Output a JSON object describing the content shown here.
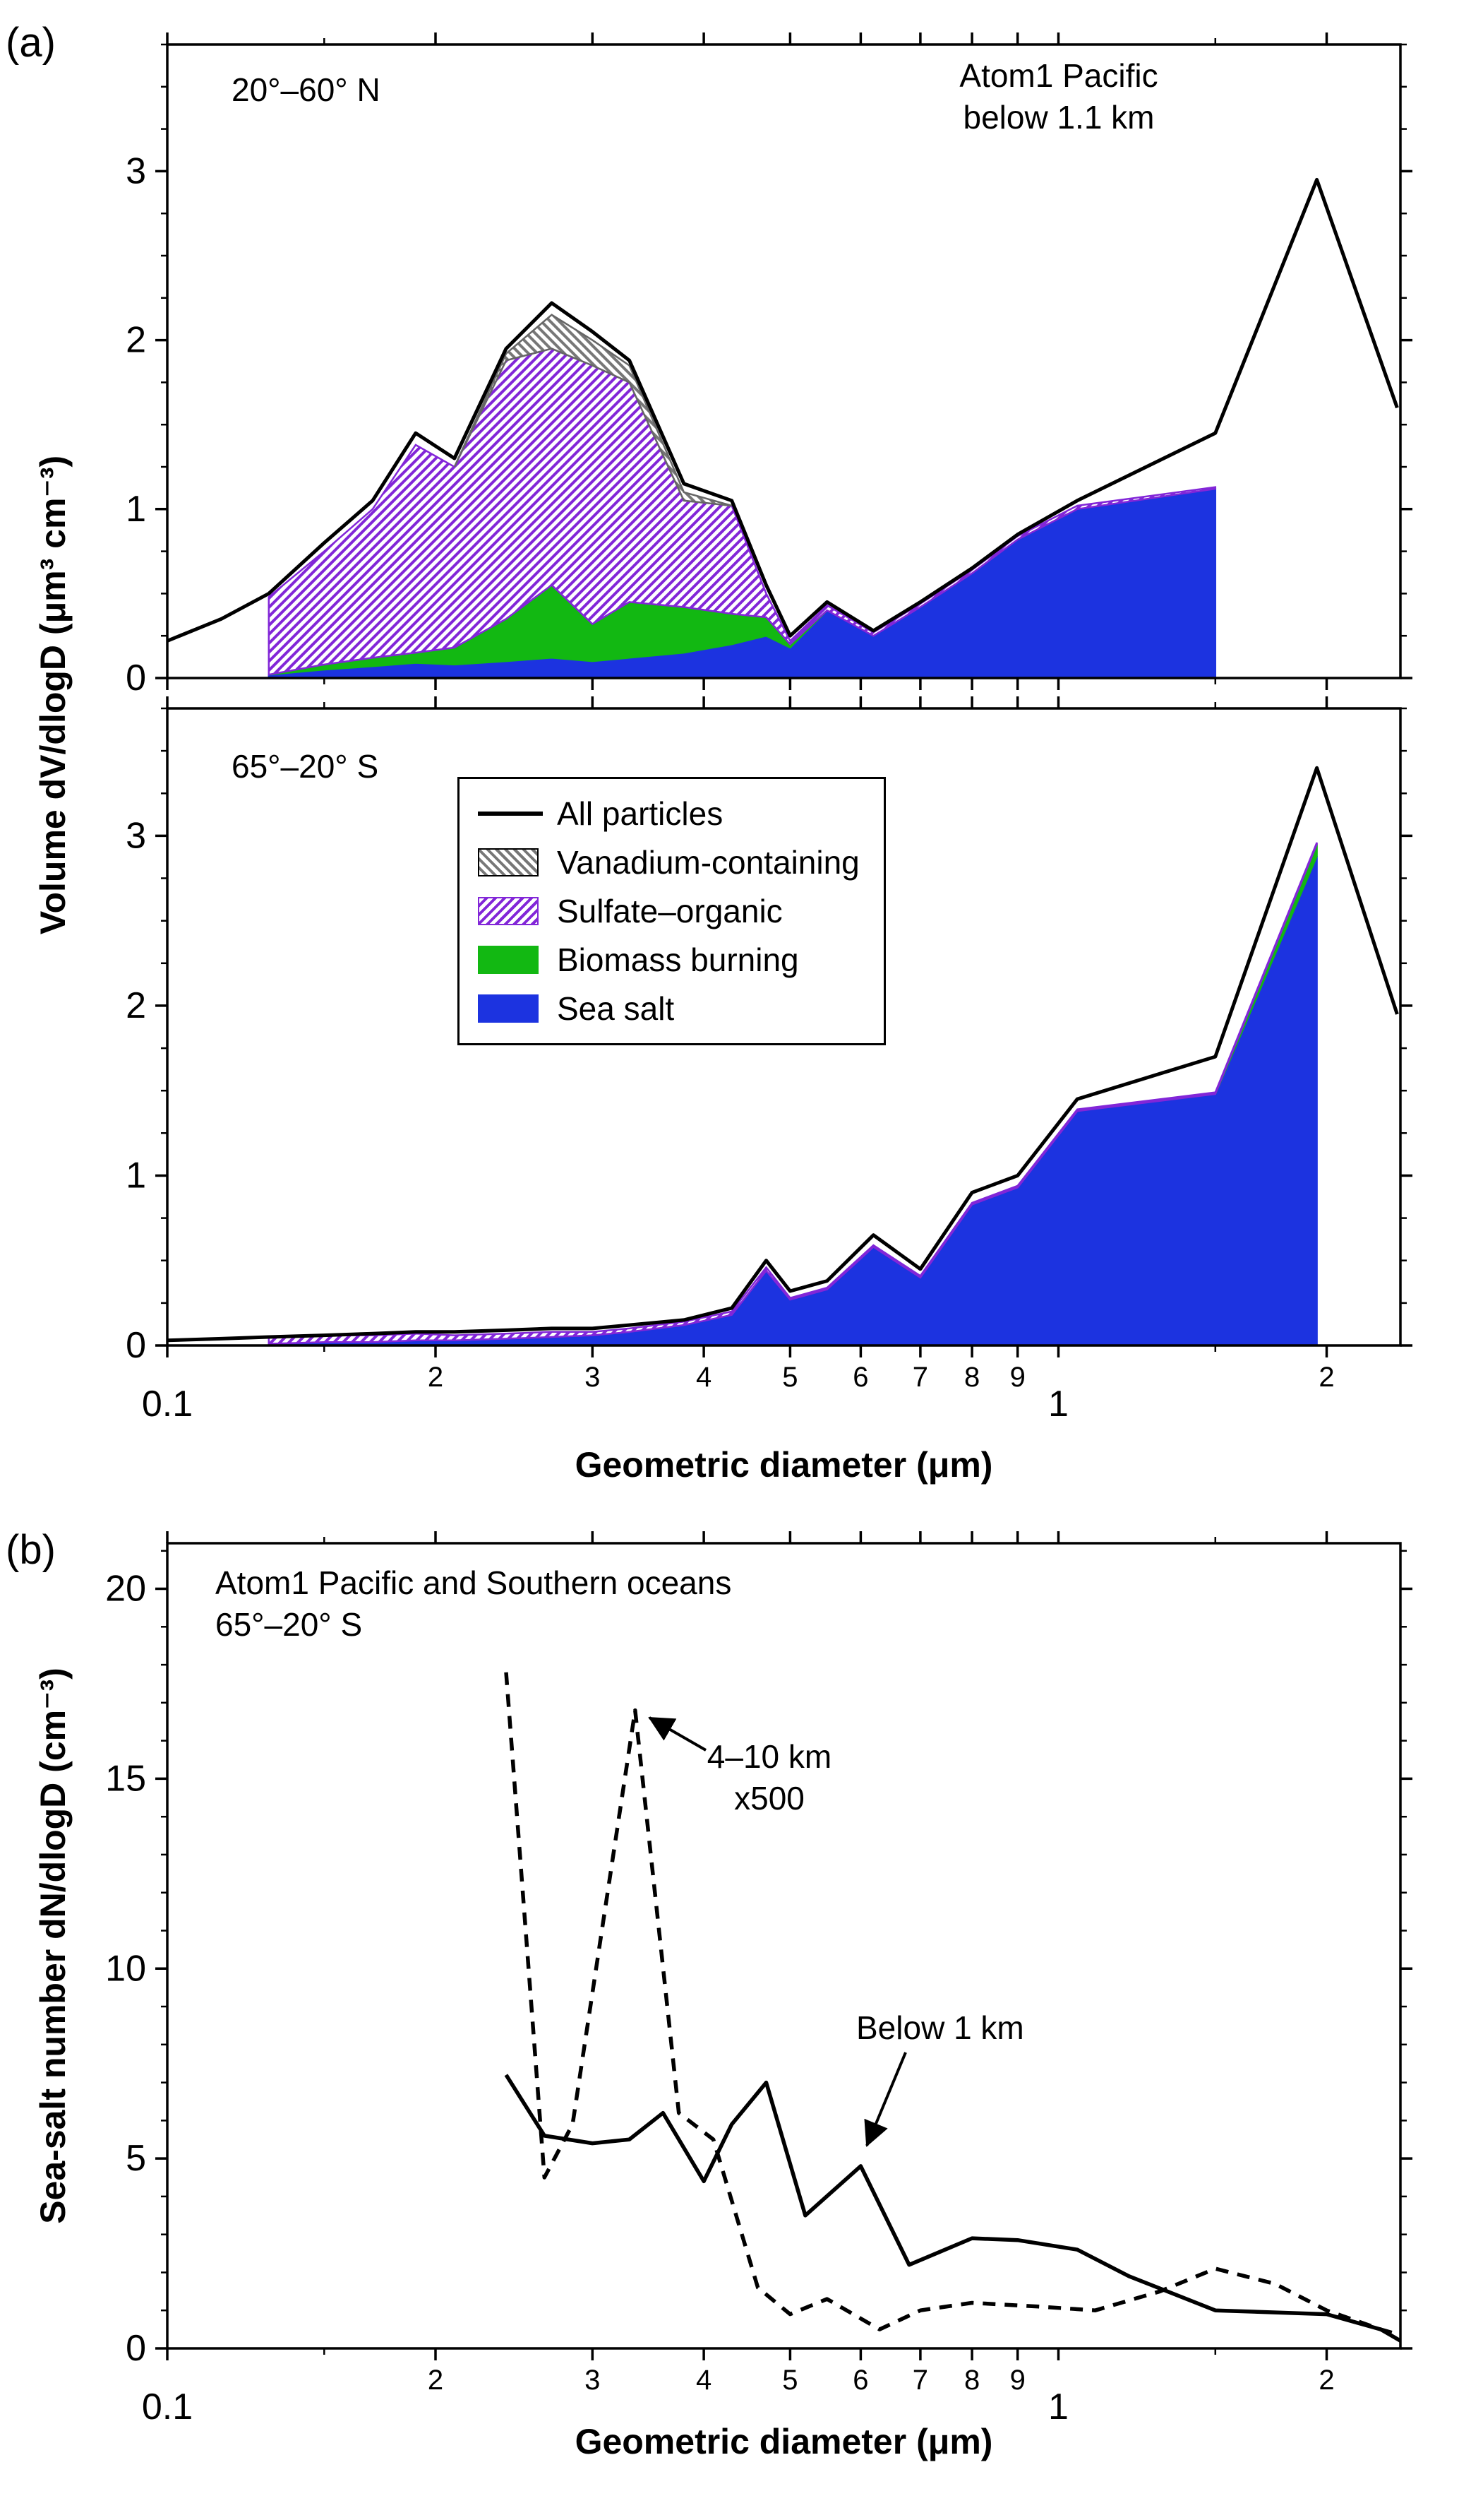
{
  "panels": {
    "a": {
      "letter": "(a)"
    },
    "b": {
      "letter": "(b)"
    }
  },
  "colors": {
    "all_particles": "#000000",
    "vanadium": "#777777",
    "sulfate_organic": "#8226d8",
    "biomass_burning": "#12b812",
    "sea_salt": "#1c33e0"
  },
  "chart_data": [
    {
      "id": "a-top",
      "type": "area",
      "region_label": "20°–60° N",
      "annotation_lines": [
        "Atom1 Pacific",
        "below 1.1 km"
      ],
      "ylabel": "Volume dV/dlogD (μm³ cm⁻³)",
      "xscale": "log",
      "xlim": [
        0.1,
        2.42
      ],
      "ylim": [
        0,
        3.75
      ],
      "y_ticks": [
        0,
        1,
        2,
        3
      ],
      "y_minor": 0.25,
      "x_ticks": [
        {
          "v": 0.1,
          "label": "0.1",
          "decade": true
        },
        {
          "v": 0.15
        },
        {
          "v": 0.2,
          "label": "2"
        },
        {
          "v": 0.3,
          "label": "3"
        },
        {
          "v": 0.4,
          "label": "4"
        },
        {
          "v": 0.5,
          "label": "5"
        },
        {
          "v": 0.6,
          "label": "6"
        },
        {
          "v": 0.7,
          "label": "7"
        },
        {
          "v": 0.8,
          "label": "8"
        },
        {
          "v": 0.9,
          "label": "9"
        },
        {
          "v": 1,
          "label": "1",
          "decade": true
        },
        {
          "v": 1.5
        },
        {
          "v": 2,
          "label": "2"
        }
      ],
      "x": [
        0.1,
        0.115,
        0.13,
        0.15,
        0.17,
        0.19,
        0.21,
        0.24,
        0.27,
        0.3,
        0.33,
        0.38,
        0.43,
        0.47,
        0.5,
        0.55,
        0.62,
        0.7,
        0.8,
        0.9,
        1.05,
        1.5,
        1.95,
        2.4
      ],
      "series": [
        {
          "name": "Sea salt",
          "color": "#1c33e0",
          "values": [
            null,
            null,
            0.02,
            0.05,
            0.07,
            0.09,
            0.08,
            0.1,
            0.12,
            0.1,
            0.12,
            0.15,
            0.2,
            0.25,
            0.18,
            0.4,
            0.25,
            0.42,
            0.62,
            0.82,
            1.0,
            1.12,
            null,
            null
          ]
        },
        {
          "name": "Biomass burning",
          "color": "#12b812",
          "values": [
            null,
            null,
            0,
            0.03,
            0.05,
            0.06,
            0.1,
            0.25,
            0.43,
            0.22,
            0.33,
            0.27,
            0.18,
            0.11,
            0.02,
            0,
            null,
            null,
            null,
            null,
            null,
            null,
            null,
            null
          ]
        },
        {
          "name": "Sulfate–organic",
          "color": "#8226d8",
          "pattern": "hatch-purple",
          "values": [
            null,
            null,
            0.46,
            0.67,
            0.88,
            1.23,
            1.07,
            1.53,
            1.4,
            1.53,
            1.3,
            0.63,
            0.64,
            0.14,
            0.02,
            0.03,
            0.02,
            0.02,
            0.02,
            0.02,
            0.02,
            0.01,
            null,
            null
          ]
        },
        {
          "name": "Vanadium-containing",
          "color": "#666666",
          "pattern": "hatch-gray",
          "values": [
            null,
            null,
            null,
            null,
            null,
            null,
            0,
            0.04,
            0.2,
            0.15,
            0.1,
            0.05,
            0,
            null,
            null,
            null,
            null,
            null,
            null,
            null,
            null,
            null,
            null,
            null
          ]
        },
        {
          "name": "All particles",
          "kind": "line",
          "color": "#000000",
          "width": 5,
          "values": [
            0.22,
            0.35,
            0.5,
            0.8,
            1.05,
            1.45,
            1.3,
            1.95,
            2.22,
            2.05,
            1.88,
            1.15,
            1.05,
            0.55,
            0.25,
            0.45,
            0.28,
            0.45,
            0.65,
            0.85,
            1.05,
            1.45,
            2.95,
            1.6
          ]
        }
      ]
    },
    {
      "id": "a-bottom",
      "type": "area",
      "region_label": "65°–20° S",
      "xlabel": "Geometric diameter (μm)",
      "ylabel": "Volume dV/dlogD (μm³ cm⁻³)",
      "legend": [
        "All particles",
        "Vanadium-containing",
        "Sulfate–organic",
        "Biomass burning",
        "Sea salt"
      ],
      "xscale": "log",
      "xlim": [
        0.1,
        2.42
      ],
      "ylim": [
        0,
        3.75
      ],
      "y_ticks": [
        0,
        1,
        2,
        3
      ],
      "y_minor": 0.25,
      "x_ticks": [
        {
          "v": 0.1,
          "label": "0.1",
          "decade": true
        },
        {
          "v": 0.15
        },
        {
          "v": 0.2,
          "label": "2"
        },
        {
          "v": 0.3,
          "label": "3"
        },
        {
          "v": 0.4,
          "label": "4"
        },
        {
          "v": 0.5,
          "label": "5"
        },
        {
          "v": 0.6,
          "label": "6"
        },
        {
          "v": 0.7,
          "label": "7"
        },
        {
          "v": 0.8,
          "label": "8"
        },
        {
          "v": 0.9,
          "label": "9"
        },
        {
          "v": 1,
          "label": "1",
          "decade": true
        },
        {
          "v": 1.5
        },
        {
          "v": 2,
          "label": "2"
        }
      ],
      "x": [
        0.1,
        0.115,
        0.13,
        0.15,
        0.17,
        0.19,
        0.21,
        0.24,
        0.27,
        0.3,
        0.33,
        0.38,
        0.43,
        0.47,
        0.5,
        0.55,
        0.62,
        0.7,
        0.8,
        0.9,
        1.05,
        1.5,
        1.95,
        2.4
      ],
      "series": [
        {
          "name": "Sea salt",
          "color": "#1c33e0",
          "values": [
            null,
            null,
            0.01,
            0.02,
            0.02,
            0.03,
            0.03,
            0.04,
            0.05,
            0.06,
            0.08,
            0.12,
            0.18,
            0.44,
            0.27,
            0.33,
            0.58,
            0.4,
            0.83,
            0.93,
            1.38,
            1.48,
            2.88,
            null
          ]
        },
        {
          "name": "Biomass burning",
          "color": "#12b812",
          "values": [
            null,
            null,
            null,
            null,
            null,
            null,
            null,
            null,
            null,
            null,
            null,
            null,
            null,
            null,
            null,
            null,
            null,
            null,
            null,
            null,
            null,
            0,
            0.07,
            null
          ]
        },
        {
          "name": "Sulfate–organic",
          "color": "#8226d8",
          "pattern": "hatch-purple",
          "values": [
            null,
            null,
            0.04,
            0.04,
            0.04,
            0.04,
            0.03,
            0.03,
            0.03,
            0.02,
            0.02,
            0.02,
            0.02,
            0.02,
            0.01,
            0.01,
            0.01,
            0.01,
            0.01,
            0.01,
            0.01,
            0.01,
            0.01,
            null
          ]
        },
        {
          "name": "All particles",
          "kind": "line",
          "color": "#000000",
          "width": 5,
          "values": [
            0.03,
            0.04,
            0.05,
            0.06,
            0.07,
            0.08,
            0.08,
            0.09,
            0.1,
            0.1,
            0.12,
            0.15,
            0.22,
            0.5,
            0.32,
            0.38,
            0.65,
            0.45,
            0.9,
            1.0,
            1.45,
            1.7,
            3.4,
            1.95
          ]
        }
      ]
    },
    {
      "id": "b",
      "type": "line",
      "title_lines": [
        "Atom1 Pacific and Southern oceans",
        "65°–20° S"
      ],
      "xlabel": "Geometric diameter (μm)",
      "ylabel": "Sea-salt number dN/dlogD (cm⁻³)",
      "annotations": [
        {
          "lines": [
            "4–10 km",
            "x500"
          ]
        },
        {
          "lines": [
            "Below 1 km"
          ]
        }
      ],
      "xscale": "log",
      "xlim": [
        0.1,
        2.42
      ],
      "ylim": [
        0,
        21.2
      ],
      "y_ticks": [
        0,
        5,
        10,
        15,
        20
      ],
      "y_minor": 1,
      "x_ticks": [
        {
          "v": 0.1,
          "label": "0.1",
          "decade": true
        },
        {
          "v": 0.15
        },
        {
          "v": 0.2,
          "label": "2"
        },
        {
          "v": 0.3,
          "label": "3"
        },
        {
          "v": 0.4,
          "label": "4"
        },
        {
          "v": 0.5,
          "label": "5"
        },
        {
          "v": 0.6,
          "label": "6"
        },
        {
          "v": 0.7,
          "label": "7"
        },
        {
          "v": 0.8,
          "label": "8"
        },
        {
          "v": 0.9,
          "label": "9"
        },
        {
          "v": 1,
          "label": "1",
          "decade": true
        },
        {
          "v": 1.5
        },
        {
          "v": 2,
          "label": "2"
        }
      ],
      "series": [
        {
          "name": "4–10 km x500",
          "kind": "line",
          "style": "dashed",
          "color": "#000000",
          "width": 5.5,
          "x": [
            0.24,
            0.265,
            0.285,
            0.335,
            0.375,
            0.41,
            0.46,
            0.5,
            0.55,
            0.63,
            0.7,
            0.8,
            0.95,
            1.1,
            1.3,
            1.5,
            1.75,
            2.0,
            2.3,
            2.42
          ],
          "values": [
            17.8,
            4.5,
            5.9,
            16.8,
            6.2,
            5.5,
            1.6,
            0.9,
            1.3,
            0.5,
            1.0,
            1.2,
            1.1,
            1.0,
            1.5,
            2.1,
            1.7,
            1.0,
            0.5,
            0.35
          ]
        },
        {
          "name": "Below 1 km",
          "kind": "line",
          "style": "solid",
          "color": "#000000",
          "width": 5.5,
          "x": [
            0.24,
            0.265,
            0.3,
            0.33,
            0.36,
            0.4,
            0.43,
            0.47,
            0.52,
            0.6,
            0.68,
            0.8,
            0.9,
            1.05,
            1.2,
            1.5,
            2.0,
            2.3,
            2.42
          ],
          "values": [
            7.2,
            5.6,
            5.4,
            5.5,
            6.2,
            4.4,
            5.9,
            7.0,
            3.5,
            4.8,
            2.2,
            2.9,
            2.85,
            2.6,
            1.9,
            1.0,
            0.9,
            0.5,
            0.2
          ]
        }
      ]
    }
  ]
}
